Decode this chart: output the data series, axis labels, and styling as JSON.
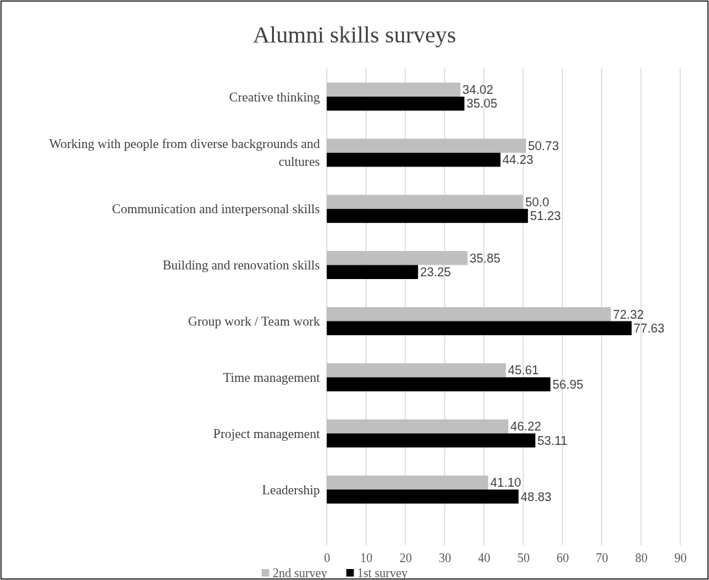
{
  "chart_data": {
    "type": "bar",
    "orientation": "horizontal",
    "title": "Alumni skills surveys",
    "categories": [
      "Creative thinking",
      "Working with people from diverse backgrounds and cultures",
      "Communication and interpersonal skills",
      "Building and renovation skills",
      "Group work / Team work",
      "Time management",
      "Project management",
      "Leadership"
    ],
    "series": [
      {
        "name": "2nd survey",
        "color": "#bfbfbf",
        "values": [
          34.02,
          50.73,
          50.0,
          35.85,
          72.32,
          45.61,
          46.22,
          41.1
        ],
        "value_labels": [
          "34.02",
          "50.73",
          "50.0",
          "35.85",
          "72.32",
          "45.61",
          "46.22",
          "41.10"
        ]
      },
      {
        "name": "1st survey",
        "color": "#000000",
        "values": [
          35.05,
          44.23,
          51.23,
          23.25,
          77.63,
          56.95,
          53.11,
          48.83
        ],
        "value_labels": [
          "35.05",
          "44.23",
          "51.23",
          "23.25",
          "77.63",
          "56.95",
          "53.11",
          "48.83"
        ]
      }
    ],
    "xlim": [
      0,
      90
    ],
    "xticks": [
      0,
      10,
      20,
      30,
      40,
      50,
      60,
      70,
      80,
      90
    ],
    "grid": "x",
    "legend": "bottom"
  }
}
